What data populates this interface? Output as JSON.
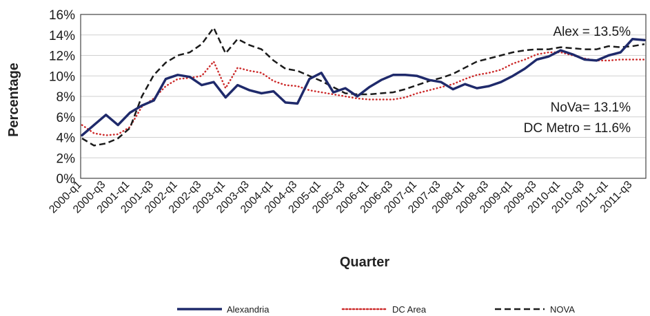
{
  "chart_data": {
    "type": "line",
    "xlabel": "Quarter",
    "ylabel": "Percentage",
    "ylim": [
      0,
      16
    ],
    "yticks": [
      "0%",
      "2%",
      "4%",
      "6%",
      "8%",
      "10%",
      "12%",
      "14%",
      "16%"
    ],
    "x": [
      "2000-q1",
      "2000-q2",
      "2000-q3",
      "2000-q4",
      "2001-q1",
      "2001-q2",
      "2001-q3",
      "2001-q4",
      "2002-q1",
      "2002-q2",
      "2002-q3",
      "2002-q4",
      "2003-q1",
      "2003-q2",
      "2003-q3",
      "2003-q4",
      "2004-q1",
      "2004-q2",
      "2004-q3",
      "2004-q4",
      "2005-q1",
      "2005-q2",
      "2005-q3",
      "2005-q4",
      "2006-q1",
      "2006-q2",
      "2006-q3",
      "2006-q4",
      "2007-q1",
      "2007-q2",
      "2007-q3",
      "2007-q4",
      "2008-q1",
      "2008-q2",
      "2008-q3",
      "2008-q4",
      "2009-q1",
      "2009-q2",
      "2009-q3",
      "2009-q4",
      "2010-q1",
      "2010-q2",
      "2010-q3",
      "2010-q4",
      "2011-q1",
      "2011-q2",
      "2011-q3",
      "2011-q4"
    ],
    "xtick_labels": [
      "2000-q1",
      "2000-q3",
      "2001-q1",
      "2001-q3",
      "2002-q1",
      "2002-q3",
      "2003-q1",
      "2003-q3",
      "2004-q1",
      "2004-q3",
      "2005-q1",
      "2005-q3",
      "2006-q1",
      "2006-q3",
      "2007-q1",
      "2007-q3",
      "2008-q1",
      "2008-q3",
      "2009-q1",
      "2009-q3",
      "2010-q1",
      "2010-q3",
      "2011-q1",
      "2011-q3"
    ],
    "series": [
      {
        "name": "Alexandria",
        "color": "#1f2a6b",
        "style": "solid",
        "values": [
          4.2,
          5.2,
          6.2,
          5.2,
          6.4,
          7.1,
          7.6,
          9.7,
          10.1,
          9.9,
          9.1,
          9.4,
          7.9,
          9.1,
          8.6,
          8.3,
          8.5,
          7.4,
          7.3,
          9.7,
          10.3,
          8.4,
          8.8,
          8.0,
          8.9,
          9.6,
          10.1,
          10.1,
          10.0,
          9.6,
          9.4,
          8.7,
          9.2,
          8.8,
          9.0,
          9.4,
          10.0,
          10.7,
          11.6,
          11.9,
          12.5,
          12.1,
          11.6,
          11.5,
          12.0,
          12.3,
          13.6,
          13.5
        ]
      },
      {
        "name": "DC Area",
        "color": "#cc2a2a",
        "style": "dotted",
        "values": [
          5.2,
          4.4,
          4.2,
          4.3,
          5.0,
          7.0,
          7.8,
          9.0,
          9.7,
          9.8,
          10.0,
          11.4,
          8.8,
          10.8,
          10.5,
          10.3,
          9.5,
          9.1,
          9.0,
          8.6,
          8.4,
          8.2,
          8.0,
          7.8,
          7.7,
          7.7,
          7.7,
          7.9,
          8.3,
          8.6,
          8.9,
          9.2,
          9.7,
          10.1,
          10.3,
          10.6,
          11.2,
          11.6,
          12.1,
          12.3,
          12.3,
          12.0,
          11.7,
          11.5,
          11.5,
          11.6,
          11.6,
          11.6
        ]
      },
      {
        "name": "NOVA",
        "color": "#1a1a1a",
        "style": "dashed",
        "values": [
          3.9,
          3.2,
          3.4,
          3.9,
          4.9,
          8.0,
          10.1,
          11.3,
          12.0,
          12.3,
          13.1,
          14.7,
          12.2,
          13.6,
          13.0,
          12.6,
          11.5,
          10.7,
          10.5,
          10.0,
          9.5,
          8.9,
          8.3,
          8.2,
          8.2,
          8.3,
          8.4,
          8.7,
          9.1,
          9.5,
          9.8,
          10.2,
          10.8,
          11.4,
          11.7,
          12.0,
          12.3,
          12.5,
          12.6,
          12.6,
          12.8,
          12.7,
          12.6,
          12.6,
          12.9,
          12.8,
          12.9,
          13.1
        ]
      }
    ],
    "annotations": [
      "Alex = 13.5%",
      "NoVa= 13.1%",
      "DC Metro = 11.6%"
    ],
    "legend_position": "bottom"
  }
}
